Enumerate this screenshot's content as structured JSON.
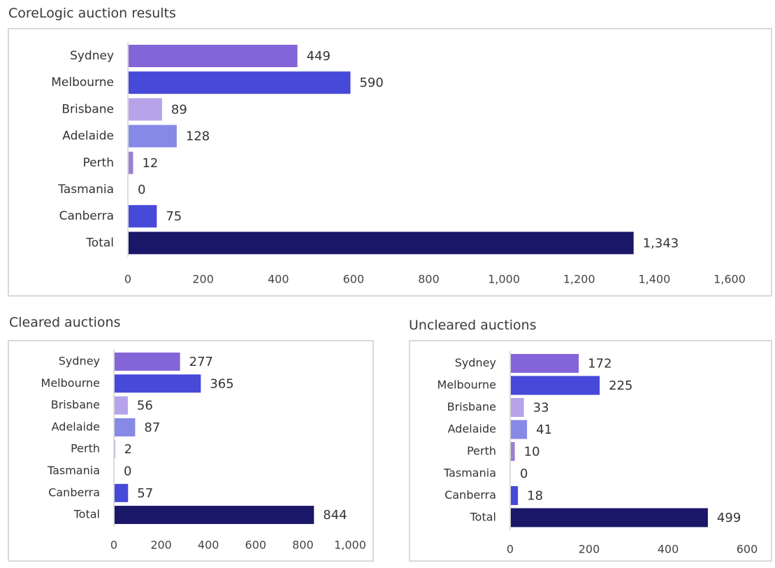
{
  "chart_data": [
    {
      "id": "main",
      "type": "bar",
      "orientation": "horizontal",
      "title": "CoreLogic auction results",
      "categories": [
        "Sydney",
        "Melbourne",
        "Brisbane",
        "Adelaide",
        "Perth",
        "Tasmania",
        "Canberra",
        "Total"
      ],
      "values": [
        449,
        590,
        89,
        128,
        12,
        0,
        75,
        1343
      ],
      "value_labels": [
        "449",
        "590",
        "89",
        "128",
        "12",
        "0",
        "75",
        "1,343"
      ],
      "colors": [
        "#8465d8",
        "#4749d9",
        "#b6a3ea",
        "#8689e6",
        "#9b7fd0",
        "#8465d8",
        "#4749d9",
        "#1a1668"
      ],
      "xlim": [
        0,
        1600
      ],
      "xticks": [
        0,
        200,
        400,
        600,
        800,
        1000,
        1200,
        1400,
        1600
      ],
      "xtick_labels": [
        "0",
        "200",
        "400",
        "600",
        "800",
        "1,000",
        "1,200",
        "1,400",
        "1,600"
      ],
      "grid": false,
      "legend": "none"
    },
    {
      "id": "cleared",
      "type": "bar",
      "orientation": "horizontal",
      "title": "Cleared auctions",
      "categories": [
        "Sydney",
        "Melbourne",
        "Brisbane",
        "Adelaide",
        "Perth",
        "Tasmania",
        "Canberra",
        "Total"
      ],
      "values": [
        277,
        365,
        56,
        87,
        2,
        0,
        57,
        844
      ],
      "value_labels": [
        "277",
        "365",
        "56",
        "87",
        "2",
        "0",
        "57",
        "844"
      ],
      "colors": [
        "#8465d8",
        "#4749d9",
        "#b6a3ea",
        "#8689e6",
        "#9b7fd0",
        "#8465d8",
        "#4749d9",
        "#1a1668"
      ],
      "xlim": [
        0,
        1000
      ],
      "xticks": [
        0,
        200,
        400,
        600,
        800,
        1000
      ],
      "xtick_labels": [
        "0",
        "200",
        "400",
        "600",
        "800",
        "1,000"
      ],
      "grid": false,
      "legend": "none"
    },
    {
      "id": "uncleared",
      "type": "bar",
      "orientation": "horizontal",
      "title": "Uncleared auctions",
      "categories": [
        "Sydney",
        "Melbourne",
        "Brisbane",
        "Adelaide",
        "Perth",
        "Tasmania",
        "Canberra",
        "Total"
      ],
      "values": [
        172,
        225,
        33,
        41,
        10,
        0,
        18,
        499
      ],
      "value_labels": [
        "172",
        "225",
        "33",
        "41",
        "10",
        "0",
        "18",
        "499"
      ],
      "colors": [
        "#8465d8",
        "#4749d9",
        "#b6a3ea",
        "#8689e6",
        "#9b7fd0",
        "#8465d8",
        "#4749d9",
        "#1a1668"
      ],
      "xlim": [
        0,
        600
      ],
      "xticks": [
        0,
        200,
        400,
        600
      ],
      "xtick_labels": [
        "0",
        "200",
        "400",
        "600"
      ],
      "grid": false,
      "legend": "none"
    }
  ]
}
